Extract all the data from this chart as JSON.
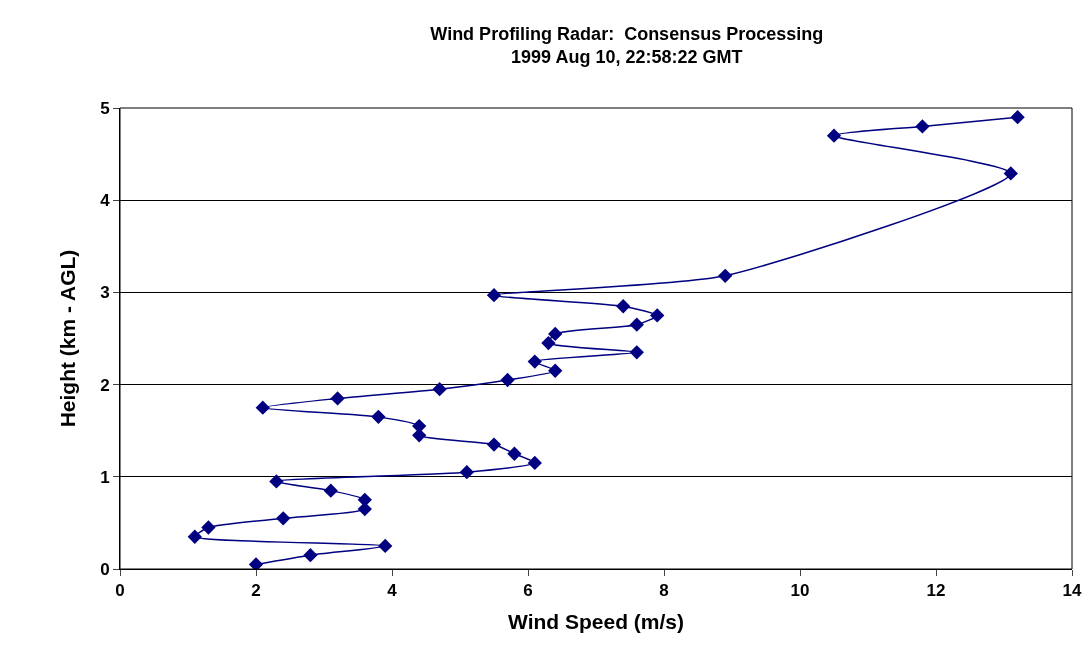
{
  "chart_data": {
    "type": "line",
    "title": "Wind Profiling Radar:  Consensus Processing\n1999 Aug 10, 22:58:22 GMT",
    "xlabel": "Wind Speed (m/s)",
    "ylabel": "Height (km - AGL)",
    "x": [
      2.0,
      2.8,
      3.9,
      1.1,
      1.3,
      2.4,
      3.6,
      3.6,
      3.1,
      2.3,
      5.1,
      6.1,
      5.8,
      5.5,
      4.4,
      4.4,
      3.8,
      2.1,
      3.2,
      4.7,
      5.7,
      6.4,
      6.1,
      7.6,
      6.3,
      6.4,
      7.6,
      7.9,
      7.4,
      5.5,
      8.9,
      13.1,
      10.5,
      11.8,
      13.2
    ],
    "series": [
      {
        "color": "#000080",
        "values": [
          0.05,
          0.15,
          0.25,
          0.35,
          0.45,
          0.55,
          0.65,
          0.75,
          0.85,
          0.95,
          1.05,
          1.15,
          1.25,
          1.35,
          1.45,
          1.55,
          1.65,
          1.75,
          1.85,
          1.95,
          2.05,
          2.15,
          2.25,
          2.35,
          2.45,
          2.55,
          2.65,
          2.75,
          2.85,
          2.97,
          3.18,
          4.29,
          4.7,
          4.8,
          4.9
        ]
      }
    ],
    "xlim": [
      0,
      14
    ],
    "xticks": [
      0,
      2,
      4,
      6,
      8,
      10,
      12,
      14
    ],
    "ylim": [
      0,
      5
    ],
    "yticks": [
      0,
      1,
      2,
      3,
      4,
      5
    ],
    "grid": "y",
    "legend": false,
    "marker": "diamond",
    "line_style": "solid"
  }
}
